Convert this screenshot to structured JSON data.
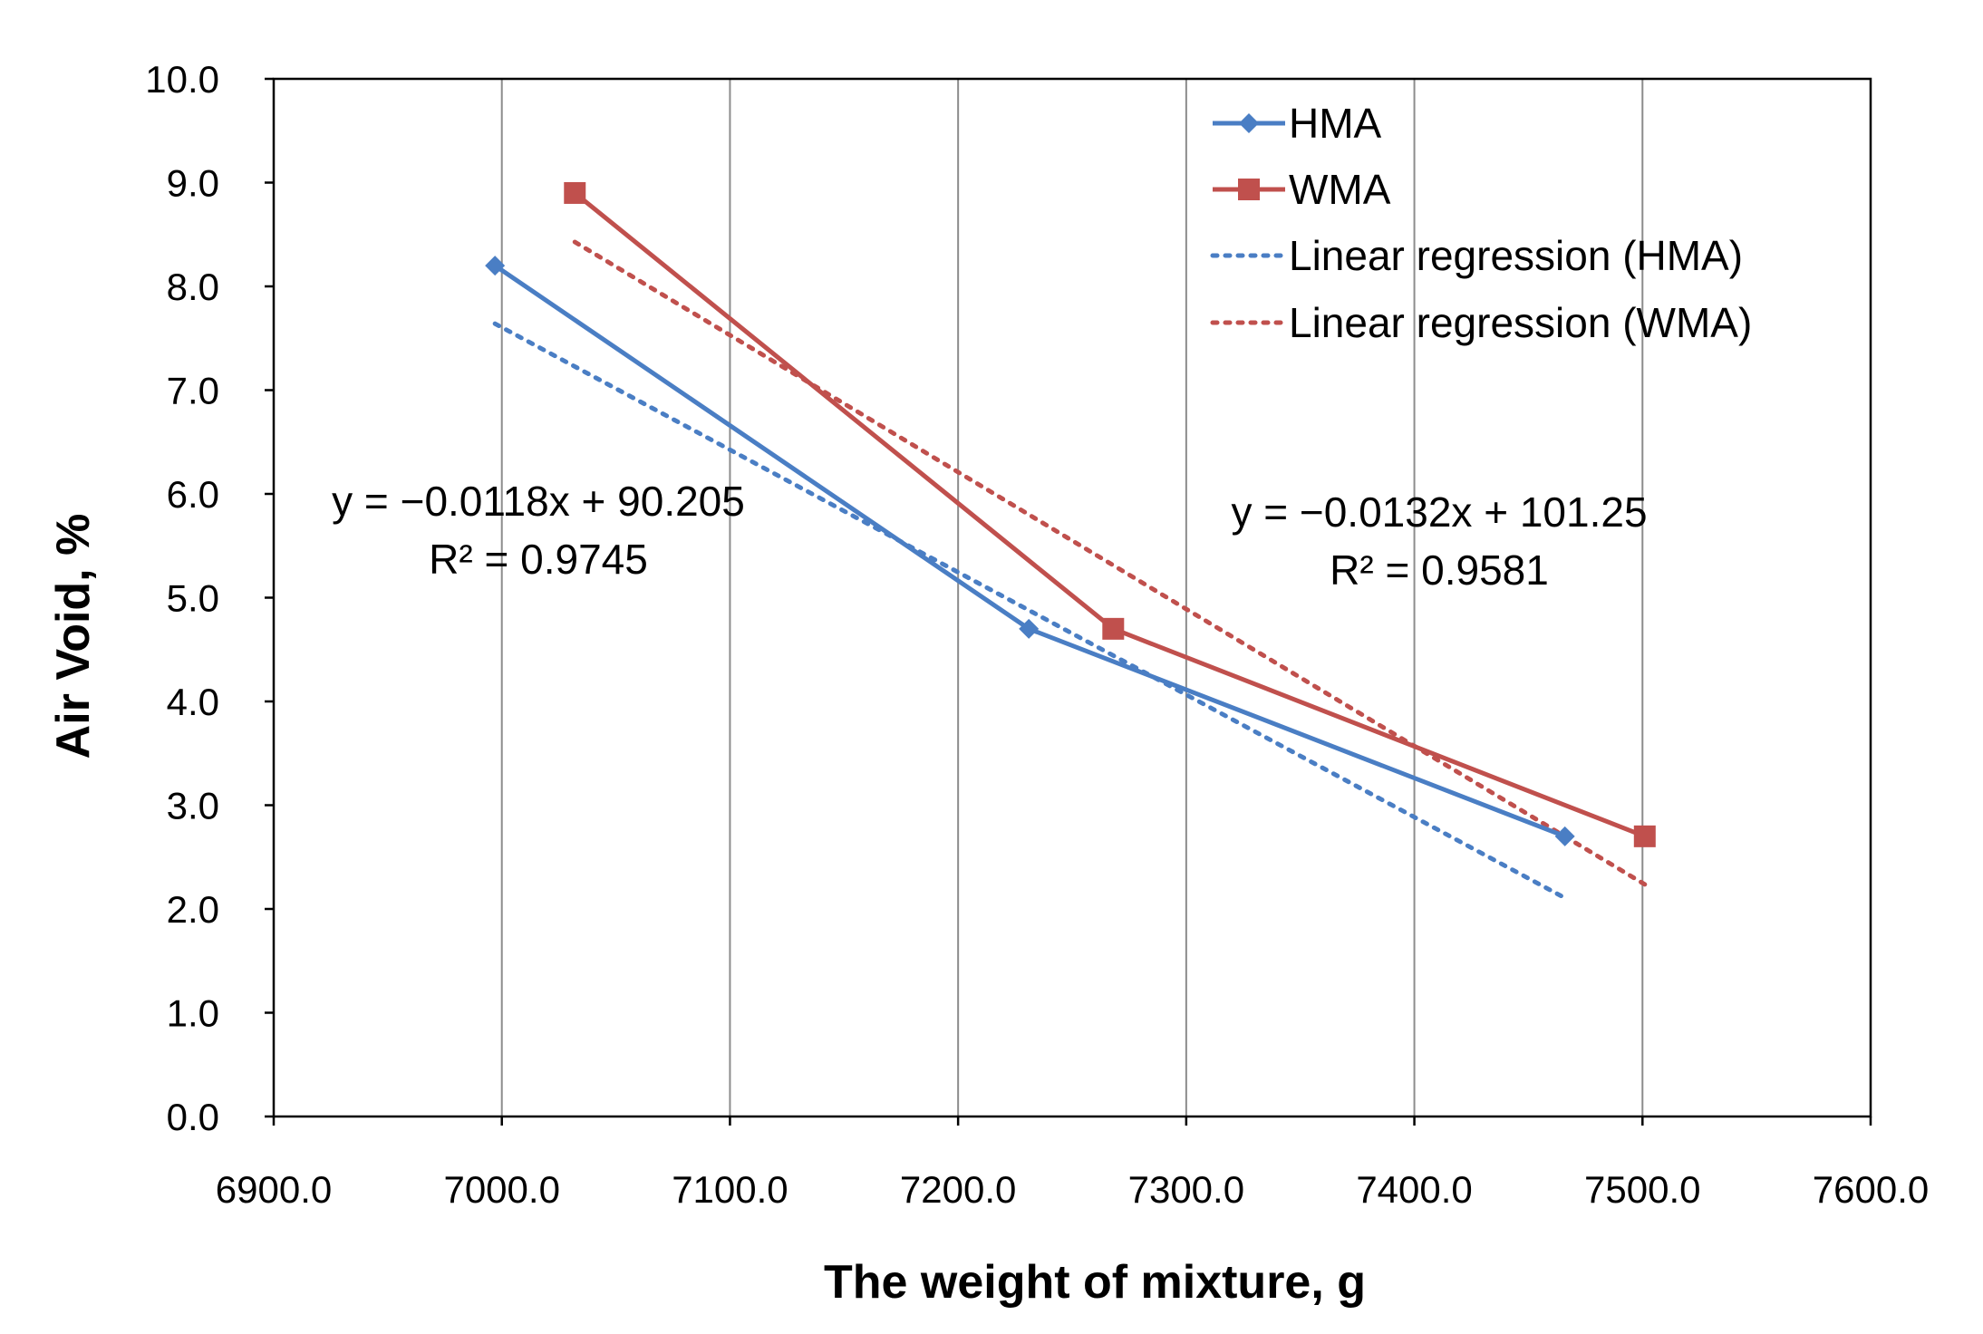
{
  "chart_data": {
    "type": "scatter",
    "xlabel": "The weight of mixture, g",
    "ylabel": "Air Void, %",
    "xlim": [
      6900,
      7600
    ],
    "ylim": [
      0,
      10
    ],
    "x_ticks": [
      "6900.0",
      "7000.0",
      "7100.0",
      "7200.0",
      "7300.0",
      "7400.0",
      "7500.0",
      "7600.0"
    ],
    "y_ticks": [
      "0.0",
      "1.0",
      "2.0",
      "3.0",
      "4.0",
      "5.0",
      "6.0",
      "7.0",
      "8.0",
      "9.0",
      "10.0"
    ],
    "grid": {
      "vertical": true,
      "horizontal": false
    },
    "legend_position": "top-right",
    "series": [
      {
        "name": "HMA",
        "style": "solid",
        "marker": "diamond",
        "color": "#4a7ec4",
        "x": [
          6997,
          7231,
          7466
        ],
        "y": [
          8.2,
          4.7,
          2.7
        ]
      },
      {
        "name": "WMA",
        "style": "solid",
        "marker": "square",
        "color": "#c0504d",
        "x": [
          7032,
          7268,
          7501
        ],
        "y": [
          8.9,
          4.7,
          2.7
        ]
      },
      {
        "name": "Linear regression (HMA)",
        "style": "dotted",
        "color": "#4a7ec4",
        "slope": -0.0118,
        "intercept": 90.205,
        "x_range": [
          6997,
          7466
        ]
      },
      {
        "name": "Linear regression (WMA)",
        "style": "dotted",
        "color": "#c0504d",
        "slope": -0.0132,
        "intercept": 101.25,
        "x_range": [
          7032,
          7501
        ]
      }
    ],
    "annotations": [
      {
        "series": "HMA",
        "equation": "y = −0.0118x + 90.205",
        "r2": "R² = 0.9745"
      },
      {
        "series": "WMA",
        "equation": "y = −0.0132x + 101.25",
        "r2": "R² = 0.9581"
      }
    ]
  }
}
